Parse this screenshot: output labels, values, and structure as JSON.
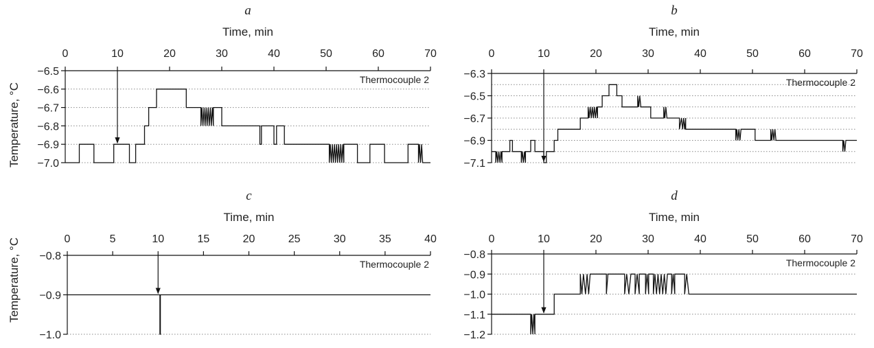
{
  "figure": {
    "ylabel": "Temperature, °C"
  },
  "chart_data": [
    {
      "panel": "a",
      "type": "line",
      "xlabel": "Time, min",
      "ylabel": "Temperature, °C",
      "xlim": [
        0,
        70
      ],
      "ylim": [
        -7.0,
        -6.5
      ],
      "xticks": [
        0,
        10,
        20,
        30,
        40,
        50,
        60,
        70
      ],
      "yticks": [
        -7.0,
        -6.9,
        -6.8,
        -6.7,
        -6.6,
        -6.5
      ],
      "ytick_labels": [
        "−7.0",
        "−6.9",
        "−6.8",
        "−6.7",
        "−6.6",
        "−6.5"
      ],
      "grid": "horizontal-dotted",
      "legend": "top-right",
      "arrow_at": 10,
      "series": [
        {
          "name": "Thermocouple 2",
          "x": [
            0,
            2.7,
            2.7,
            5.5,
            5.5,
            9.3,
            9.3,
            12.3,
            12.3,
            13.5,
            13.5,
            15.2,
            15.2,
            16.0,
            16.0,
            17.5,
            17.5,
            23.2,
            23.2,
            26.0,
            26.0,
            26.2,
            26.4,
            26.6,
            26.8,
            27.0,
            27.2,
            27.4,
            27.6,
            27.8,
            28.0,
            28.2,
            28.4,
            28.4,
            30.0,
            30.0,
            37.3,
            37.3,
            37.6,
            37.6,
            40.0,
            40.0,
            40.5,
            40.5,
            42.0,
            42.0,
            50.6,
            50.6,
            50.8,
            51.0,
            51.2,
            51.4,
            51.6,
            51.8,
            52.0,
            52.2,
            52.4,
            52.6,
            52.8,
            53.0,
            53.2,
            53.4,
            53.4,
            56.0,
            56.0,
            58.4,
            58.4,
            61.2,
            61.2,
            65.7,
            65.7,
            67.7,
            67.7,
            67.9,
            68.1,
            68.3,
            68.5,
            68.5,
            70
          ],
          "y": [
            -7.0,
            -7.0,
            -6.9,
            -6.9,
            -7.0,
            -7.0,
            -6.9,
            -6.9,
            -7.0,
            -7.0,
            -6.9,
            -6.9,
            -6.8,
            -6.8,
            -6.7,
            -6.7,
            -6.6,
            -6.6,
            -6.7,
            -6.7,
            -6.8,
            -6.7,
            -6.8,
            -6.7,
            -6.8,
            -6.7,
            -6.8,
            -6.7,
            -6.8,
            -6.7,
            -6.8,
            -6.7,
            -6.8,
            -6.7,
            -6.7,
            -6.8,
            -6.8,
            -6.9,
            -6.9,
            -6.8,
            -6.8,
            -6.9,
            -6.9,
            -6.8,
            -6.8,
            -6.9,
            -6.9,
            -7.0,
            -6.9,
            -7.0,
            -6.9,
            -7.0,
            -6.9,
            -7.0,
            -6.9,
            -7.0,
            -6.9,
            -7.0,
            -6.9,
            -7.0,
            -6.9,
            -7.0,
            -6.9,
            -6.9,
            -7.0,
            -7.0,
            -6.9,
            -6.9,
            -7.0,
            -7.0,
            -6.9,
            -6.9,
            -7.0,
            -6.9,
            -7.0,
            -6.9,
            -7.0,
            -7.0,
            -7.0
          ]
        }
      ]
    },
    {
      "panel": "b",
      "type": "line",
      "xlabel": "Time, min",
      "ylabel": "",
      "xlim": [
        0,
        70
      ],
      "ylim": [
        -7.1,
        -6.3
      ],
      "xticks": [
        0,
        10,
        20,
        30,
        40,
        50,
        60,
        70
      ],
      "yticks": [
        -7.1,
        -6.9,
        -6.7,
        -6.5,
        -6.3
      ],
      "ytick_labels": [
        "−7.1",
        "−6.9",
        "−6.7",
        "−6.5",
        "−6.3"
      ],
      "grid": "horizontal-dotted",
      "grid_step": 0.1,
      "legend": "top-right",
      "arrow_at": 10,
      "series": [
        {
          "name": "Thermocouple 2",
          "x": [
            0,
            0.8,
            0.8,
            1.0,
            1.2,
            1.4,
            1.6,
            1.8,
            2.0,
            2.0,
            3.5,
            3.5,
            4.0,
            4.0,
            5.7,
            5.7,
            5.9,
            6.1,
            6.3,
            6.5,
            6.5,
            7.5,
            7.5,
            8.3,
            8.3,
            8.5,
            8.5,
            10.0,
            10.0,
            10.5,
            10.5,
            12.0,
            12.0,
            12.7,
            12.7,
            17.0,
            17.0,
            18.5,
            18.5,
            18.7,
            18.9,
            19.1,
            19.3,
            19.5,
            19.7,
            19.9,
            20.1,
            20.3,
            20.3,
            21.2,
            21.2,
            22.5,
            22.5,
            24.0,
            24.0,
            25.0,
            25.0,
            28.0,
            28.0,
            28.2,
            28.4,
            28.6,
            28.6,
            30.5,
            30.5,
            33.0,
            33.0,
            33.2,
            33.4,
            33.6,
            33.6,
            36.0,
            36.0,
            36.4,
            36.6,
            36.8,
            37.0,
            37.2,
            37.2,
            46.8,
            46.8,
            47.0,
            47.2,
            47.4,
            47.6,
            47.8,
            47.8,
            50.5,
            50.5,
            53.5,
            53.5,
            53.7,
            53.9,
            54.1,
            54.3,
            54.5,
            54.5,
            55.0,
            55.0,
            67.3,
            67.3,
            67.5,
            67.7,
            67.9,
            67.9,
            70
          ],
          "y": [
            -7.0,
            -7.0,
            -7.1,
            -7.0,
            -7.1,
            -7.0,
            -7.1,
            -7.0,
            -7.1,
            -7.0,
            -7.0,
            -6.9,
            -6.9,
            -7.0,
            -7.0,
            -7.1,
            -7.0,
            -7.1,
            -7.0,
            -7.1,
            -7.0,
            -7.0,
            -6.9,
            -6.9,
            -7.0,
            -7.0,
            -7.0,
            -7.0,
            -7.1,
            -7.1,
            -7.0,
            -7.0,
            -6.9,
            -6.9,
            -6.8,
            -6.8,
            -6.7,
            -6.7,
            -6.6,
            -6.7,
            -6.6,
            -6.7,
            -6.6,
            -6.7,
            -6.6,
            -6.7,
            -6.6,
            -6.7,
            -6.6,
            -6.6,
            -6.5,
            -6.5,
            -6.4,
            -6.4,
            -6.5,
            -6.5,
            -6.6,
            -6.6,
            -6.5,
            -6.6,
            -6.5,
            -6.6,
            -6.6,
            -6.6,
            -6.7,
            -6.7,
            -6.6,
            -6.7,
            -6.6,
            -6.7,
            -6.7,
            -6.7,
            -6.8,
            -6.7,
            -6.8,
            -6.7,
            -6.8,
            -6.7,
            -6.8,
            -6.8,
            -6.9,
            -6.8,
            -6.9,
            -6.8,
            -6.9,
            -6.8,
            -6.8,
            -6.8,
            -6.9,
            -6.9,
            -6.8,
            -6.9,
            -6.8,
            -6.9,
            -6.8,
            -6.9,
            -6.9,
            -6.9,
            -6.9,
            -6.9,
            -7.0,
            -6.9,
            -7.0,
            -6.9,
            -6.9,
            -6.9
          ]
        }
      ]
    },
    {
      "panel": "c",
      "type": "line",
      "xlabel": "Time, min",
      "ylabel": "Temperature, °C",
      "xlim": [
        0,
        40
      ],
      "ylim": [
        -1.0,
        -0.8
      ],
      "xticks": [
        0,
        5,
        10,
        15,
        20,
        25,
        30,
        35,
        40
      ],
      "yticks": [
        -1.0,
        -0.9,
        -0.8
      ],
      "ytick_labels": [
        "−1.0",
        "−0.9",
        "−0.8"
      ],
      "grid": "horizontal-dotted",
      "legend": "top-right",
      "arrow_at": 10,
      "series": [
        {
          "name": "Thermocouple 2",
          "x": [
            0,
            10.2,
            10.2,
            10.25,
            10.25,
            40
          ],
          "y": [
            -0.9,
            -0.9,
            -1.0,
            -1.0,
            -0.9,
            -0.9
          ]
        }
      ]
    },
    {
      "panel": "d",
      "type": "line",
      "xlabel": "Time, min",
      "ylabel": "",
      "xlim": [
        0,
        70
      ],
      "ylim": [
        -1.2,
        -0.8
      ],
      "xticks": [
        0,
        10,
        20,
        30,
        40,
        50,
        60,
        70
      ],
      "yticks": [
        -1.2,
        -1.1,
        -1.0,
        -0.9,
        -0.8
      ],
      "ytick_labels": [
        "−1.2",
        "−1.1",
        "−1.0",
        "−0.9",
        "−0.8"
      ],
      "grid": "horizontal-dotted",
      "legend": "top-right",
      "arrow_at": 10,
      "series": [
        {
          "name": "Thermocouple 2",
          "x": [
            0,
            7.5,
            7.5,
            7.7,
            7.9,
            8.1,
            8.3,
            8.3,
            12.0,
            12.0,
            12.5,
            12.5,
            17.0,
            17.0,
            17.3,
            17.6,
            18.0,
            18.3,
            18.6,
            18.9,
            18.9,
            22.0,
            22.0,
            22.3,
            22.3,
            25.5,
            25.5,
            25.9,
            26.3,
            26.7,
            26.7,
            27.5,
            27.5,
            27.9,
            28.3,
            28.3,
            29.5,
            29.5,
            29.8,
            30.1,
            30.1,
            31.0,
            31.0,
            31.3,
            31.6,
            31.9,
            32.2,
            32.5,
            32.8,
            33.1,
            33.4,
            33.7,
            33.7,
            34.5,
            34.5,
            34.8,
            35.1,
            35.1,
            37.0,
            37.0,
            37.4,
            37.8,
            37.8,
            70
          ],
          "y": [
            -1.1,
            -1.1,
            -1.2,
            -1.1,
            -1.2,
            -1.1,
            -1.2,
            -1.1,
            -1.1,
            -1.0,
            -1.0,
            -1.0,
            -1.0,
            -0.9,
            -1.0,
            -0.9,
            -1.0,
            -0.9,
            -1.0,
            -0.9,
            -0.9,
            -0.9,
            -1.0,
            -0.9,
            -0.9,
            -0.9,
            -1.0,
            -0.9,
            -1.0,
            -0.9,
            -0.9,
            -0.9,
            -1.0,
            -0.9,
            -1.0,
            -0.9,
            -0.9,
            -1.0,
            -0.9,
            -1.0,
            -0.9,
            -0.9,
            -1.0,
            -0.9,
            -1.0,
            -0.9,
            -1.0,
            -0.9,
            -1.0,
            -0.9,
            -1.0,
            -0.9,
            -0.9,
            -0.9,
            -1.0,
            -0.9,
            -1.0,
            -0.9,
            -0.9,
            -1.0,
            -0.9,
            -1.0,
            -1.0,
            -1.0
          ]
        }
      ]
    }
  ]
}
